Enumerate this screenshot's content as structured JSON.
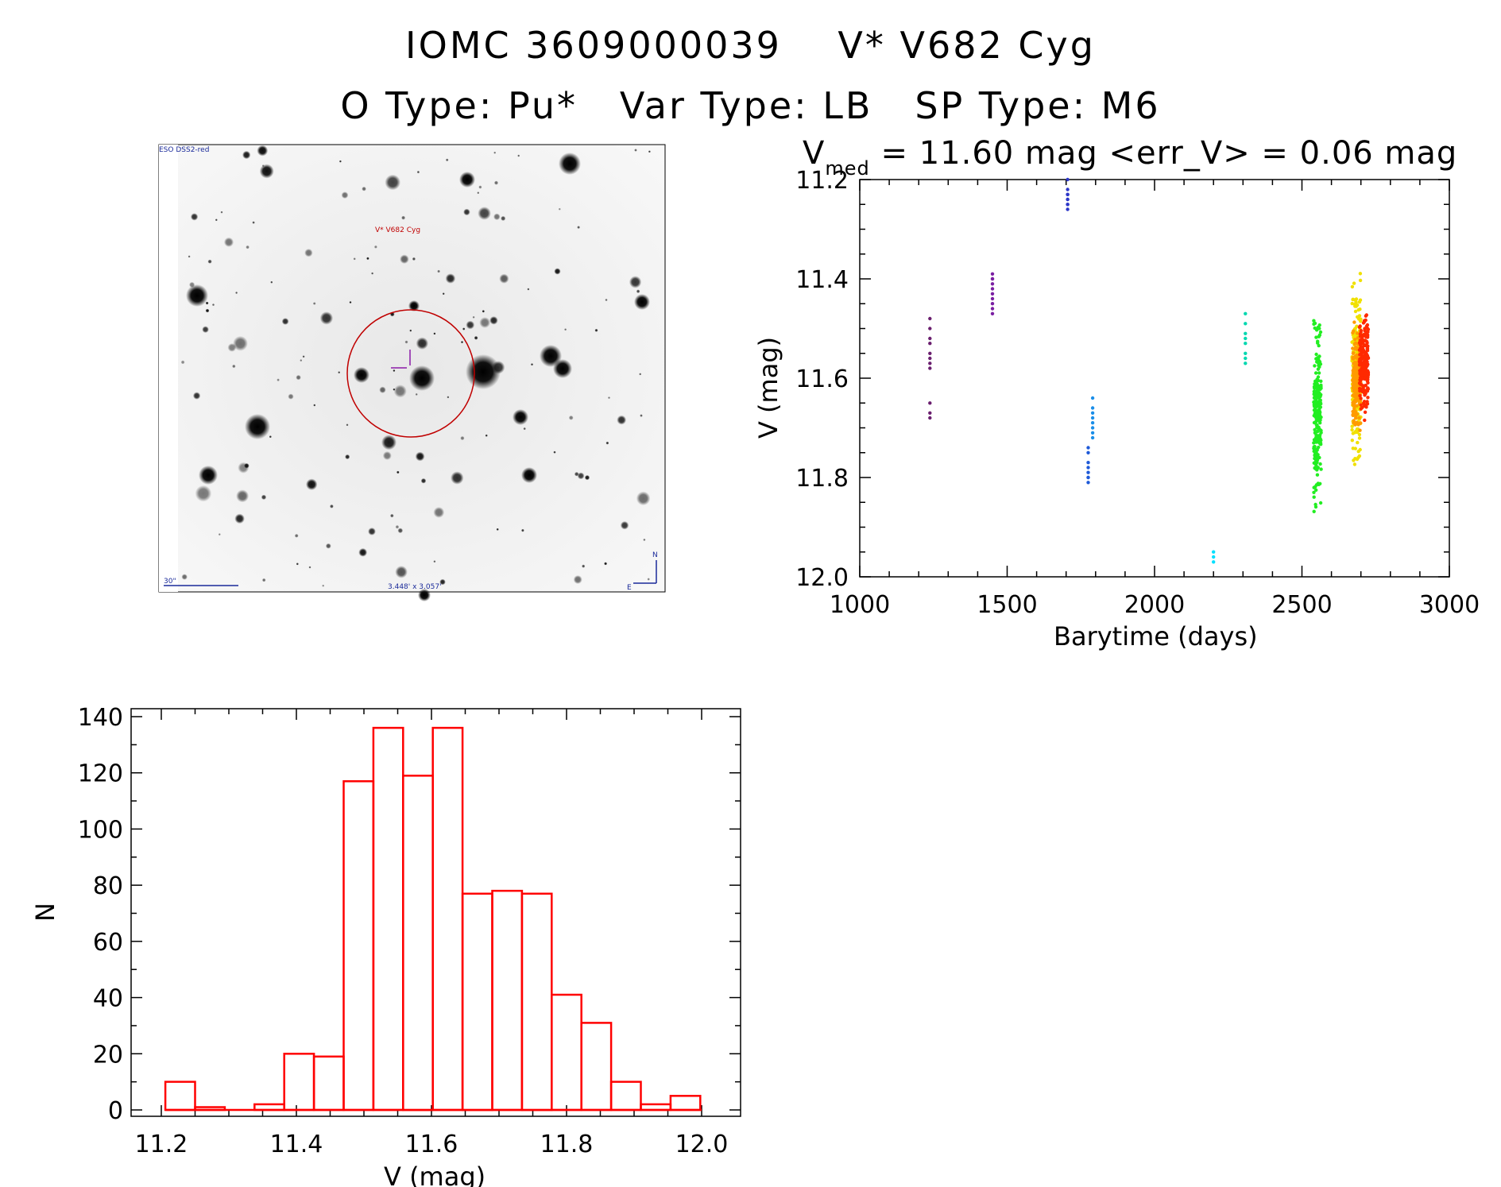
{
  "header": {
    "line1": "IOMC 3609000039    V* V682 Cyg",
    "line2": "O Type: Pu*   Var Type: LB   SP Type: M6"
  },
  "finder": {
    "survey": "ESO DSS2-red",
    "object": "V* V682 Cyg",
    "scale": "30\"",
    "fov": "3.448' x 3.057'",
    "north": "N",
    "east": "E"
  },
  "chart_data": [
    {
      "type": "scatter",
      "title_main": "V",
      "title_sub": "med",
      "title_rest": " = 11.60 mag <err_V> = 0.06 mag",
      "xlabel": "Barytime (days)",
      "ylabel": "V (mag)",
      "xlim": [
        1000,
        3000
      ],
      "ylim": [
        12.0,
        11.2
      ],
      "y_inverted": true,
      "xticks": [
        "1000",
        "1500",
        "2000",
        "2500",
        "3000"
      ],
      "yticks": [
        "11.2",
        "11.4",
        "11.6",
        "11.8",
        "12.0"
      ],
      "groups": [
        {
          "color": "#6a1e6e",
          "x": [
            1238,
            1238,
            1238,
            1238,
            1238,
            1238,
            1238,
            1238,
            1238,
            1238,
            1238
          ],
          "y": [
            11.48,
            11.5,
            11.52,
            11.53,
            11.55,
            11.56,
            11.57,
            11.58,
            11.65,
            11.67,
            11.68
          ]
        },
        {
          "color": "#7a1fa2",
          "x": [
            1450,
            1450,
            1450,
            1450,
            1450,
            1450,
            1450,
            1450,
            1450,
            1450
          ],
          "y": [
            11.39,
            11.4,
            11.4,
            11.41,
            11.42,
            11.43,
            11.44,
            11.45,
            11.46,
            11.47
          ]
        },
        {
          "color": "#2c36c8",
          "x": [
            1705,
            1705,
            1705,
            1705,
            1705,
            1705,
            1705,
            1705,
            1705
          ],
          "y": [
            11.2,
            11.22,
            11.23,
            11.23,
            11.24,
            11.24,
            11.25,
            11.25,
            11.26
          ]
        },
        {
          "color": "#1f5ad8",
          "x": [
            1775,
            1775,
            1775,
            1775,
            1775,
            1775,
            1775,
            1775
          ],
          "y": [
            11.74,
            11.75,
            11.77,
            11.78,
            11.79,
            11.8,
            11.8,
            11.81
          ]
        },
        {
          "color": "#1a8ee8",
          "x": [
            1790,
            1790,
            1790,
            1790,
            1790,
            1790,
            1790,
            1790
          ],
          "y": [
            11.64,
            11.66,
            11.67,
            11.68,
            11.69,
            11.7,
            11.71,
            11.72
          ]
        },
        {
          "color": "#00e0ff",
          "x": [
            2200,
            2200,
            2200
          ],
          "y": [
            11.95,
            11.96,
            11.97
          ]
        },
        {
          "color": "#00d8b0",
          "x": [
            2308,
            2308,
            2308,
            2308,
            2308,
            2308,
            2308,
            2308
          ],
          "y": [
            11.47,
            11.49,
            11.51,
            11.52,
            11.53,
            11.55,
            11.56,
            11.57
          ]
        },
        {
          "color": "#22ee22",
          "x": [
            2540,
            2565
          ],
          "y": [
            11.43,
            11.91
          ],
          "cloud": true
        },
        {
          "color": "#f0e000",
          "x": [
            2670,
            2700
          ],
          "y": [
            11.37,
            11.82
          ],
          "cloud": true
        },
        {
          "color": "#ff9a00",
          "x": [
            2672,
            2700
          ],
          "y": [
            11.47,
            11.73
          ],
          "cloud": true
        },
        {
          "color": "#ff2a00",
          "x": [
            2695,
            2725
          ],
          "y": [
            11.45,
            11.7
          ],
          "cloud": true
        }
      ]
    },
    {
      "type": "bar",
      "xlabel": "V (mag)",
      "ylabel": "N",
      "xlim": [
        11.2,
        12.0
      ],
      "ylim": [
        0,
        140
      ],
      "xticks": [
        "11.2",
        "11.4",
        "11.6",
        "11.8",
        "12.0"
      ],
      "yticks": [
        "0",
        "20",
        "40",
        "60",
        "80",
        "100",
        "120",
        "140"
      ],
      "bin_width": 0.044,
      "bin_starts": [
        11.206,
        11.25,
        11.294,
        11.338,
        11.382,
        11.426,
        11.47,
        11.514,
        11.558,
        11.602,
        11.646,
        11.69,
        11.734,
        11.778,
        11.822,
        11.866,
        11.91,
        11.954
      ],
      "values": [
        10,
        1,
        0,
        2,
        20,
        19,
        117,
        136,
        119,
        136,
        77,
        78,
        77,
        41,
        31,
        10,
        2,
        5
      ],
      "color": "#ff0000"
    }
  ]
}
